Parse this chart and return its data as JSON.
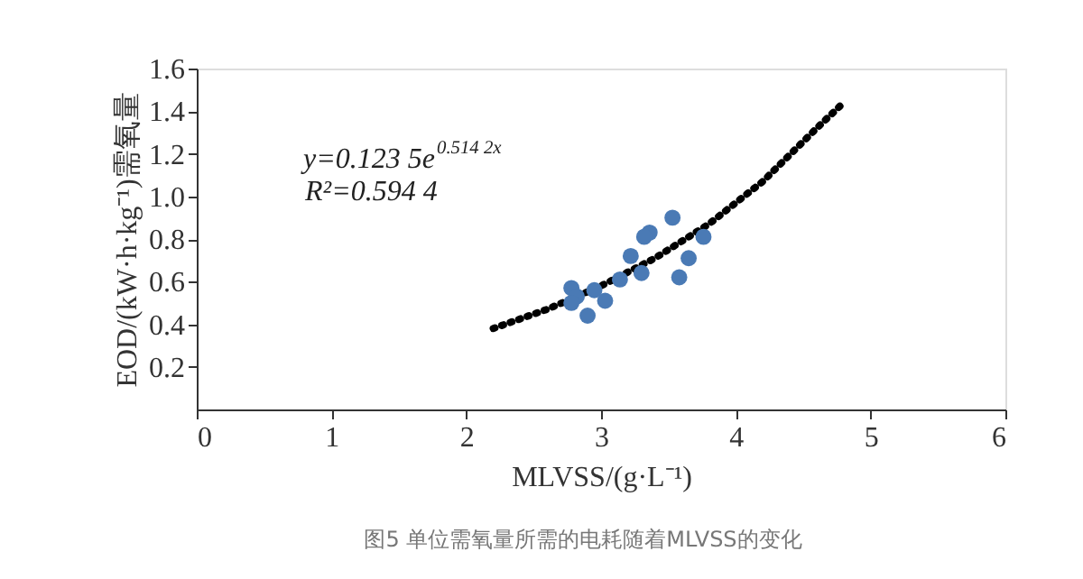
{
  "chart_data": {
    "type": "scatter",
    "xlabel": "MLVSS/(g·L⁻¹)",
    "ylabel": "EOD/(kW·h·kg⁻¹)需氧量",
    "xlim": [
      0,
      6
    ],
    "xticks": [
      0,
      1,
      2,
      3,
      4,
      5,
      6
    ],
    "ylim": [
      0,
      1.6
    ],
    "yticks": [
      0.2,
      0.4,
      0.6,
      0.8,
      {
        "value": 1,
        "label": "1.0"
      },
      1.2,
      1.4,
      1.6
    ],
    "grid": false,
    "series": [
      {
        "marker": "circle",
        "color": "#4a7ab5",
        "x": [
          3.53,
          3.36,
          3.32,
          3.76,
          3.22,
          3.65,
          3.3,
          3.58,
          3.14,
          2.78,
          2.95,
          2.82,
          3.03,
          2.78,
          2.9
        ],
        "values": [
          0.9,
          0.83,
          0.81,
          0.81,
          0.72,
          0.71,
          0.64,
          0.62,
          0.61,
          0.57,
          0.56,
          0.53,
          0.51,
          0.5,
          0.44
        ]
      },
      {
        "type": "line",
        "line_style": "dotted",
        "color": "#000000",
        "x": [
          2.2,
          2.6,
          3.0,
          3.4,
          3.8,
          4.2,
          4.6,
          4.8
        ],
        "values": [
          0.38,
          0.47,
          0.58,
          0.71,
          0.87,
          1.07,
          1.32,
          1.44
        ]
      }
    ],
    "annotations": [
      "y=0.123 5e$^{0.514 2x}$",
      "R²=0.594 4",
      "图5 单位需氧量所需的电耗随着MLVSS的变化"
    ]
  }
}
